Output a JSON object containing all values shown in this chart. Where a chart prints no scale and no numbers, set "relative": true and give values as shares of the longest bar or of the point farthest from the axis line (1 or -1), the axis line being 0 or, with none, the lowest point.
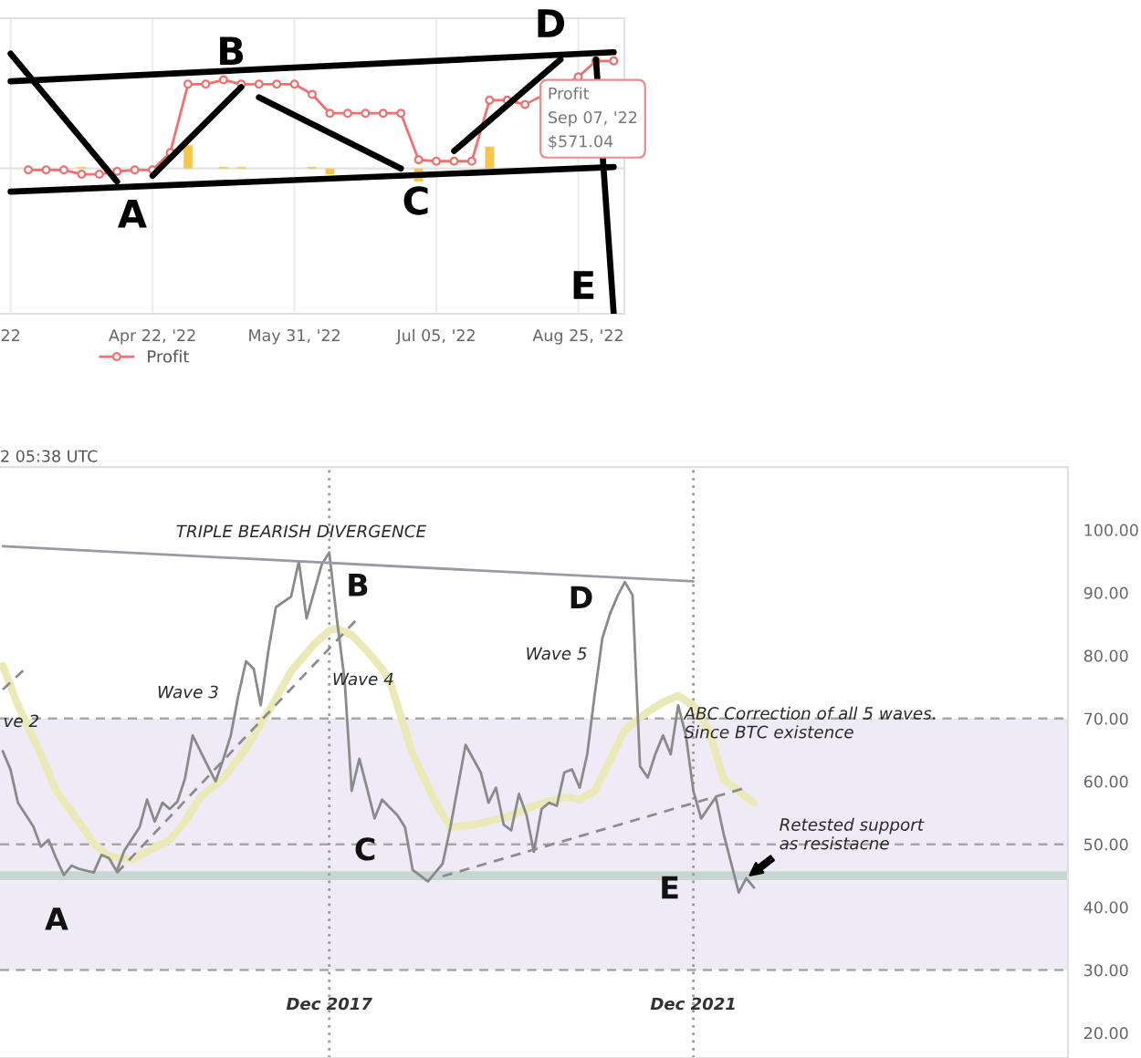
{
  "chart_data": [
    {
      "type": "line",
      "relative": true,
      "tick_labels": "x",
      "grid": "x",
      "legend": "bottom left",
      "categories": [
        "22",
        null,
        null,
        null,
        null,
        null,
        null,
        null,
        "Apr 22, '22",
        null,
        null,
        null,
        null,
        null,
        null,
        null,
        "May 31, '22",
        null,
        null,
        null,
        null,
        null,
        null,
        null,
        "Jul 05, '22",
        null,
        null,
        null,
        null,
        null,
        null,
        null,
        "Aug 25, '22",
        null,
        null
      ],
      "series": [
        {
          "name": "Profit",
          "color": "#f07070",
          "marker": "circle",
          "values": [
            null,
            -0.01,
            -0.01,
            -0.01,
            -0.04,
            -0.04,
            -0.02,
            -0.01,
            -0.01,
            0.11,
            0.58,
            0.58,
            0.61,
            0.58,
            0.58,
            0.58,
            0.58,
            0.51,
            0.38,
            0.38,
            0.38,
            0.38,
            0.38,
            0.06,
            0.05,
            0.05,
            0.05,
            0.47,
            0.47,
            0.44,
            null,
            null,
            0.63,
            0.74,
            0.74
          ]
        },
        {
          "type": "bar",
          "color": "#f7c548",
          "values": [
            null,
            null,
            null,
            null,
            0.01,
            null,
            null,
            null,
            null,
            null,
            0.16,
            null,
            0.01,
            0.01,
            null,
            null,
            null,
            0.01,
            -0.04,
            null,
            null,
            null,
            null,
            -0.09,
            null,
            null,
            null,
            0.15,
            null,
            null,
            null,
            null,
            null,
            0.01,
            null
          ]
        },
        {
          "color": "#000000",
          "values": [
            0.6,
            null,
            null,
            null,
            null,
            null,
            null,
            null,
            null,
            null,
            null,
            null,
            null,
            null,
            null,
            null,
            null,
            null,
            null,
            null,
            null,
            null,
            null,
            null,
            null,
            null,
            null,
            null,
            null,
            null,
            null,
            null,
            null,
            null,
            0.8
          ]
        },
        {
          "color": "#000000",
          "values": [
            -0.16,
            null,
            null,
            null,
            null,
            null,
            null,
            null,
            null,
            null,
            null,
            null,
            null,
            null,
            null,
            null,
            null,
            null,
            null,
            null,
            null,
            null,
            null,
            null,
            null,
            null,
            null,
            null,
            null,
            null,
            null,
            null,
            null,
            null,
            0.01
          ]
        },
        {
          "name": "A",
          "color": "#000000",
          "values": [
            0.79,
            null,
            null,
            null,
            null,
            null,
            -0.09,
            null,
            null,
            null,
            null,
            null,
            null,
            null,
            null,
            null,
            null,
            null,
            null,
            null,
            null,
            null,
            null,
            null,
            null,
            null,
            null,
            null,
            null,
            null,
            null,
            null,
            null,
            null,
            null
          ]
        },
        {
          "name": "B",
          "color": "#000000",
          "values": [
            null,
            null,
            null,
            null,
            null,
            null,
            null,
            null,
            -0.05,
            null,
            null,
            null,
            null,
            0.56,
            null,
            null,
            null,
            null,
            null,
            null,
            null,
            null,
            null,
            null,
            null,
            null,
            null,
            null,
            null,
            null,
            null,
            null,
            null,
            null,
            null
          ]
        },
        {
          "name": "C",
          "color": "#000000",
          "values": [
            null,
            null,
            null,
            null,
            null,
            null,
            null,
            null,
            null,
            null,
            null,
            null,
            null,
            null,
            0.49,
            null,
            null,
            null,
            null,
            null,
            null,
            null,
            0.0,
            null,
            null,
            null,
            null,
            null,
            null,
            null,
            null,
            null,
            null,
            null,
            null
          ]
        },
        {
          "name": "D",
          "color": "#000000",
          "values": [
            null,
            null,
            null,
            null,
            null,
            null,
            null,
            null,
            null,
            null,
            null,
            null,
            null,
            null,
            null,
            null,
            null,
            null,
            null,
            null,
            null,
            null,
            null,
            null,
            null,
            0.12,
            null,
            null,
            null,
            null,
            null,
            0.75,
            null,
            null,
            null
          ]
        },
        {
          "name": "E",
          "color": "#000000",
          "values": [
            null,
            null,
            null,
            null,
            null,
            null,
            null,
            null,
            null,
            null,
            null,
            null,
            null,
            null,
            null,
            null,
            null,
            null,
            null,
            null,
            null,
            null,
            null,
            null,
            null,
            null,
            null,
            null,
            null,
            null,
            null,
            null,
            null,
            0.75,
            -1.0
          ]
        }
      ],
      "annotations": [
        "Profit\nSep 07, '22\n$571.04"
      ]
    },
    {
      "type": "line",
      "title": "2 05:38 UTC",
      "xlim": [
        "2014-04-20",
        "2026-01-12"
      ],
      "xticks": [
        {
          "value": "2017-12",
          "label": "Dec 2017"
        },
        {
          "value": "2021-12",
          "label": "Dec 2021"
        }
      ],
      "ylim": [
        16,
        110
      ],
      "yticks": [
        {
          "value": 20,
          "label": "20.00"
        },
        {
          "value": 30,
          "label": "30.00"
        },
        {
          "value": 40,
          "label": "40.00"
        },
        {
          "value": 50,
          "label": "50.00"
        },
        {
          "value": 60,
          "label": "60.00"
        },
        {
          "value": 70,
          "label": "70.00"
        },
        {
          "value": 80,
          "label": "80.00"
        },
        {
          "value": 90,
          "label": "90.00"
        },
        {
          "value": 100,
          "label": "100.00"
        }
      ],
      "bands": [
        {
          "axis": "y",
          "from": 30,
          "to": 70,
          "color": "#eeeaf6"
        },
        {
          "axis": "y",
          "from": 44.3,
          "to": 45.7,
          "color": "#c9d5d3"
        }
      ],
      "ref_lines": [
        {
          "axis": "y",
          "value": 70,
          "color": "#a6a6a6",
          "line_style": "dashed"
        },
        {
          "axis": "y",
          "value": 50,
          "color": "#a6a6a6",
          "line_style": "dashed"
        },
        {
          "axis": "y",
          "value": 30,
          "color": "#a6a6a6",
          "line_style": "dashed"
        },
        {
          "axis": "x",
          "value": "2017-12",
          "color": "#9a9a9a",
          "line_style": "dotted"
        },
        {
          "axis": "x",
          "value": "2021-12",
          "color": "#9a9a9a",
          "line_style": "dotted"
        }
      ],
      "series": [
        {
          "color": "#ece9b8",
          "x": [
            "2014-05",
            "2014-07",
            "2014-10",
            "2014-12",
            "2015-03",
            "2015-05",
            "2015-07",
            "2015-10",
            "2015-12",
            "2016-03",
            "2016-05",
            "2016-07",
            "2016-10",
            "2017-01",
            "2017-04",
            "2017-07",
            "2017-10",
            "2017-12",
            "2018-01",
            "2018-03",
            "2018-05",
            "2018-07",
            "2018-08",
            "2018-11",
            "2019-02",
            "2019-04",
            "2019-07",
            "2019-09",
            "2019-12",
            "2020-03",
            "2020-07",
            "2020-09",
            "2020-11",
            "2021-01",
            "2021-03",
            "2021-06",
            "2021-08",
            "2021-10",
            "2021-12",
            "2022-02",
            "2022-04",
            "2022-07",
            "2022-08"
          ],
          "values": [
            78.4,
            72.1,
            64.3,
            58.5,
            53.6,
            50.2,
            48.0,
            47.6,
            48.8,
            50.7,
            53.6,
            57.5,
            60.4,
            65.3,
            71.1,
            77.5,
            81.8,
            84.0,
            84.3,
            83.3,
            80.8,
            77.9,
            76.0,
            64.3,
            56.6,
            52.7,
            53.1,
            53.6,
            54.6,
            56.1,
            57.5,
            57.1,
            58.5,
            63.4,
            68.2,
            71.1,
            72.6,
            73.6,
            72.1,
            68.2,
            60.4,
            57.5,
            56.6
          ]
        },
        {
          "color": "#8a8a8a",
          "x": [
            "2014-05",
            "2014-06",
            "2014-07",
            "2014-09",
            "2014-10",
            "2014-11",
            "2014-12",
            "2015-01",
            "2015-02",
            "2015-03",
            "2015-05",
            "2015-06",
            "2015-07",
            "2015-08",
            "2015-09",
            "2015-11",
            "2015-12",
            "2016-01",
            "2016-02",
            "2016-03",
            "2016-04",
            "2016-05",
            "2016-06",
            "2016-08",
            "2016-09",
            "2016-10",
            "2016-11",
            "2016-12",
            "2017-01",
            "2017-02",
            "2017-03",
            "2017-04",
            "2017-05",
            "2017-07",
            "2017-08",
            "2017-09",
            "2017-10",
            "2017-11",
            "2017-12",
            "2018-01",
            "2018-02",
            "2018-03",
            "2018-04",
            "2018-05",
            "2018-06",
            "2018-07",
            "2018-09",
            "2018-10",
            "2018-11",
            "2019-01",
            "2019-03",
            "2019-04",
            "2019-06",
            "2019-08",
            "2019-09",
            "2019-10",
            "2019-11",
            "2019-12",
            "2020-01",
            "2020-02",
            "2020-03",
            "2020-04",
            "2020-05",
            "2020-06",
            "2020-07",
            "2020-08",
            "2020-09",
            "2020-10",
            "2020-11",
            "2020-12",
            "2021-01",
            "2021-02",
            "2021-03",
            "2021-04",
            "2021-05",
            "2021-06",
            "2021-07",
            "2021-08",
            "2021-09",
            "2021-10",
            "2021-11",
            "2021-12",
            "2022-01",
            "2022-03",
            "2022-04",
            "2022-06",
            "2022-07",
            "2022-08"
          ],
          "values": [
            64.8,
            61.9,
            56.6,
            52.8,
            49.6,
            50.7,
            47.8,
            45.1,
            46.6,
            46.1,
            45.5,
            48.3,
            47.8,
            45.7,
            49.0,
            52.7,
            57.1,
            53.6,
            56.6,
            55.6,
            56.8,
            60.4,
            67.3,
            62.4,
            60.0,
            63.4,
            67.3,
            73.6,
            79.1,
            77.9,
            72.1,
            80.8,
            87.7,
            89.4,
            95.0,
            85.9,
            90.1,
            94.5,
            96.4,
            85.7,
            76.0,
            58.5,
            63.6,
            59.0,
            54.1,
            57.1,
            54.6,
            52.7,
            45.9,
            44.1,
            46.9,
            52.7,
            65.8,
            61.4,
            56.6,
            59.0,
            53.1,
            52.2,
            58.0,
            54.6,
            48.8,
            55.6,
            56.6,
            56.1,
            61.4,
            61.9,
            59.0,
            64.3,
            74.1,
            82.8,
            86.7,
            89.6,
            91.7,
            89.6,
            62.4,
            60.6,
            64.3,
            67.3,
            64.3,
            72.1,
            67.3,
            58.5,
            54.1,
            57.5,
            51.7,
            42.3,
            44.6,
            43.1
          ]
        },
        {
          "color": "#9a9aa6",
          "x": [
            "2014-05",
            "2021-12"
          ],
          "values": [
            97.4,
            91.8
          ]
        },
        {
          "color": "#8c8c8c",
          "line_style": "dashed",
          "x": [
            "2015-08",
            "2018-04"
          ],
          "values": [
            45.4,
            86.2
          ]
        },
        {
          "color": "#8c8c8c",
          "line_style": "dashed",
          "x": [
            "2019-03",
            "2022-07"
          ],
          "values": [
            44.9,
            59.0
          ]
        },
        {
          "color": "#8c8c8c",
          "line_style": "dashed",
          "x": [
            "2014-05",
            "2014-08"
          ],
          "values": [
            74.6,
            78.0
          ]
        }
      ],
      "annotations": [
        "TRIPLE BEARISH DIVERGENCE",
        "ve 2",
        "Wave 3",
        "Wave 4",
        "Wave 5",
        "A",
        "B",
        "C",
        "D",
        "E",
        "ABC Correction of all 5 waves.\nSince BTC existence",
        {
          "text": "Retested support\nas resistacne",
          "x": "2022-07",
          "y": 44.6
        }
      ]
    }
  ]
}
